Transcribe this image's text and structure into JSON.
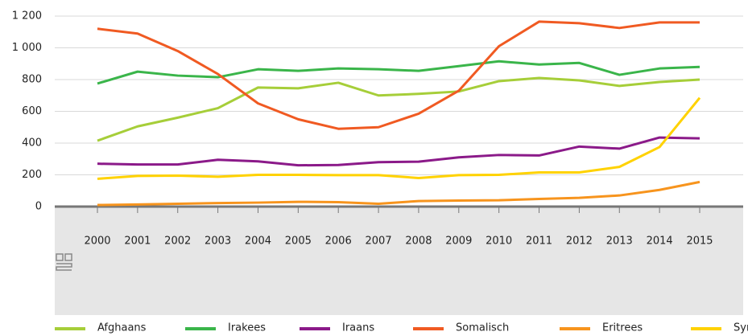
{
  "chart_data": {
    "type": "line",
    "x": [
      2000,
      2001,
      2002,
      2003,
      2004,
      2005,
      2006,
      2007,
      2008,
      2009,
      2010,
      2011,
      2012,
      2013,
      2014,
      2015
    ],
    "series": [
      {
        "name": "Afghaans",
        "color": "#a6ce39",
        "values": [
          415,
          505,
          560,
          620,
          750,
          745,
          780,
          700,
          710,
          725,
          790,
          810,
          795,
          760,
          785,
          800
        ]
      },
      {
        "name": "Irakees",
        "color": "#3ab54a",
        "values": [
          775,
          850,
          825,
          815,
          865,
          855,
          870,
          865,
          855,
          885,
          915,
          895,
          905,
          830,
          870,
          880
        ]
      },
      {
        "name": "Iraans",
        "color": "#8b1a89",
        "values": [
          270,
          265,
          265,
          295,
          285,
          260,
          262,
          280,
          283,
          310,
          325,
          322,
          378,
          365,
          435,
          430
        ]
      },
      {
        "name": "Somalisch",
        "color": "#f05a22",
        "values": [
          1120,
          1090,
          980,
          835,
          650,
          550,
          490,
          500,
          585,
          730,
          1010,
          1165,
          1155,
          1125,
          1160,
          1160
        ]
      },
      {
        "name": "Eritrees",
        "color": "#f7941d",
        "values": [
          10,
          13,
          18,
          22,
          25,
          30,
          28,
          18,
          35,
          38,
          40,
          48,
          55,
          70,
          105,
          155
        ]
      },
      {
        "name": "Syrisch",
        "color": "#ffd200",
        "values": [
          175,
          193,
          195,
          188,
          200,
          200,
          198,
          198,
          180,
          198,
          200,
          215,
          215,
          250,
          375,
          685
        ]
      }
    ],
    "ylim": [
      0,
      1200
    ],
    "yticks": [
      0,
      200,
      400,
      600,
      800,
      {
        "value": 1000,
        "label": "1 000"
      },
      {
        "value": 1200,
        "label": "1 200"
      }
    ],
    "xlim": [
      2000,
      2015
    ],
    "grid": true
  }
}
